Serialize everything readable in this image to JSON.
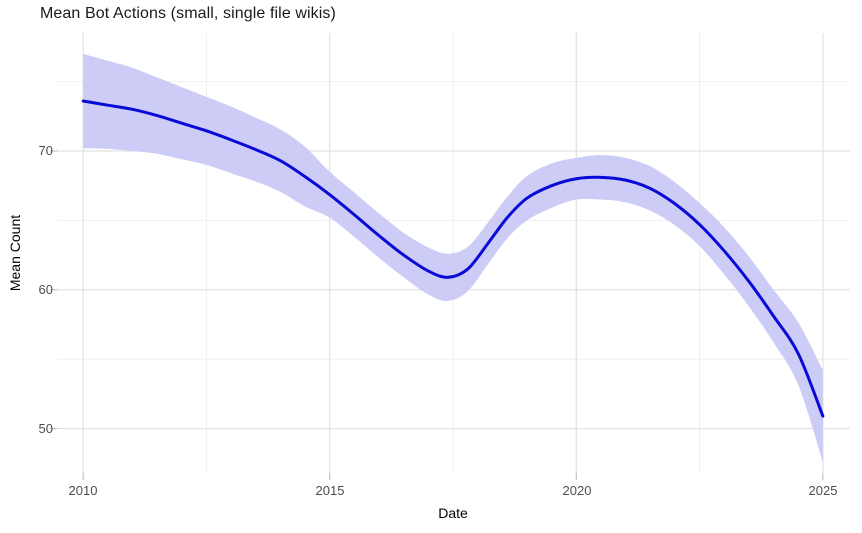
{
  "title": "Mean Bot Actions (small, single file wikis)",
  "x_axis": {
    "label": "Date",
    "ticks": [
      "2010",
      "2015",
      "2020",
      "2025"
    ]
  },
  "y_axis": {
    "label": "Mean Count",
    "ticks": [
      "70",
      "60",
      "50"
    ]
  },
  "colors": {
    "line": "#0a0ad8",
    "ribbon": "#ccccf6",
    "grid_major": "#e2e2e2",
    "grid_minor": "#efefef",
    "tick_mark": "#c0c0c0",
    "axis_text": "#4d4d4d",
    "title_text": "#1a1a1a"
  },
  "chart_data": {
    "type": "line",
    "title": "Mean Bot Actions (small, single file wikis)",
    "xlabel": "Date",
    "ylabel": "Mean Count",
    "legend": false,
    "grid": true,
    "xlim": [
      2009.47,
      2025.55
    ],
    "ylim": [
      46.8,
      78.5
    ],
    "x_major_ticks": [
      2010,
      2015,
      2020,
      2025
    ],
    "x_minor_gridlines": [
      2012.5,
      2017.5,
      2022.5
    ],
    "y_major_ticks": [
      70,
      60,
      50
    ],
    "y_minor_gridlines": [
      75,
      65,
      55
    ],
    "x": [
      2010,
      2010.5,
      2011,
      2011.5,
      2012,
      2012.5,
      2013,
      2013.5,
      2014,
      2014.5,
      2015,
      2015.5,
      2016,
      2016.5,
      2017,
      2017.4,
      2017.8,
      2018.2,
      2018.6,
      2019,
      2019.5,
      2020,
      2020.5,
      2021,
      2021.5,
      2022,
      2022.5,
      2023,
      2023.5,
      2024,
      2024.5,
      2025
    ],
    "series": [
      {
        "name": "smoothed_mean_count",
        "values": [
          73.6,
          73.3,
          73.0,
          72.55,
          72.0,
          71.45,
          70.8,
          70.1,
          69.3,
          68.15,
          66.85,
          65.4,
          63.9,
          62.5,
          61.35,
          60.9,
          61.5,
          63.3,
          65.2,
          66.6,
          67.5,
          68.0,
          68.1,
          67.9,
          67.3,
          66.2,
          64.7,
          62.8,
          60.6,
          58.1,
          55.4,
          50.9
        ]
      },
      {
        "name": "ci_upper",
        "values": [
          77.0,
          76.5,
          76.0,
          75.3,
          74.6,
          73.9,
          73.2,
          72.4,
          71.55,
          70.3,
          68.5,
          67.0,
          65.5,
          64.1,
          63.05,
          62.6,
          63.1,
          64.8,
          66.7,
          68.2,
          69.1,
          69.5,
          69.7,
          69.5,
          68.9,
          67.75,
          66.25,
          64.5,
          62.4,
          60.0,
          57.65,
          54.2
        ]
      },
      {
        "name": "ci_lower",
        "values": [
          70.2,
          70.15,
          70.0,
          69.8,
          69.4,
          69.0,
          68.4,
          67.8,
          67.05,
          66.0,
          65.2,
          63.8,
          62.3,
          60.9,
          59.65,
          59.2,
          59.9,
          61.8,
          63.7,
          65.0,
          65.9,
          66.5,
          66.5,
          66.3,
          65.7,
          64.65,
          63.15,
          61.1,
          58.8,
          56.2,
          53.15,
          47.6
        ]
      }
    ]
  }
}
